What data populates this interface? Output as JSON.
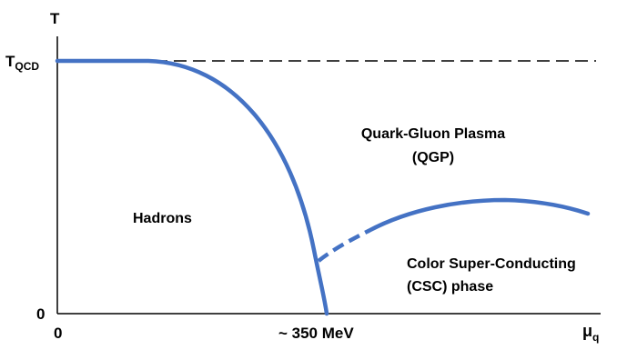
{
  "axes": {
    "y_label": "T",
    "x_label_main": "μ",
    "x_label_sub": "q",
    "y_tick_top_main": "T",
    "y_tick_top_sub": "QCD",
    "y_tick_zero": "0",
    "x_tick_zero": "0",
    "x_tick_mid": "~ 350 MeV"
  },
  "regions": {
    "hadrons": "Hadrons",
    "qgp_line1": "Quark-Gluon Plasma",
    "qgp_line2": "(QGP)",
    "csc_line1": "Color Super-Conducting",
    "csc_line2": "(CSC) phase"
  },
  "colors": {
    "phase_boundary": "#4472C4",
    "axes": "#000000",
    "reference_line": "#000000"
  }
}
